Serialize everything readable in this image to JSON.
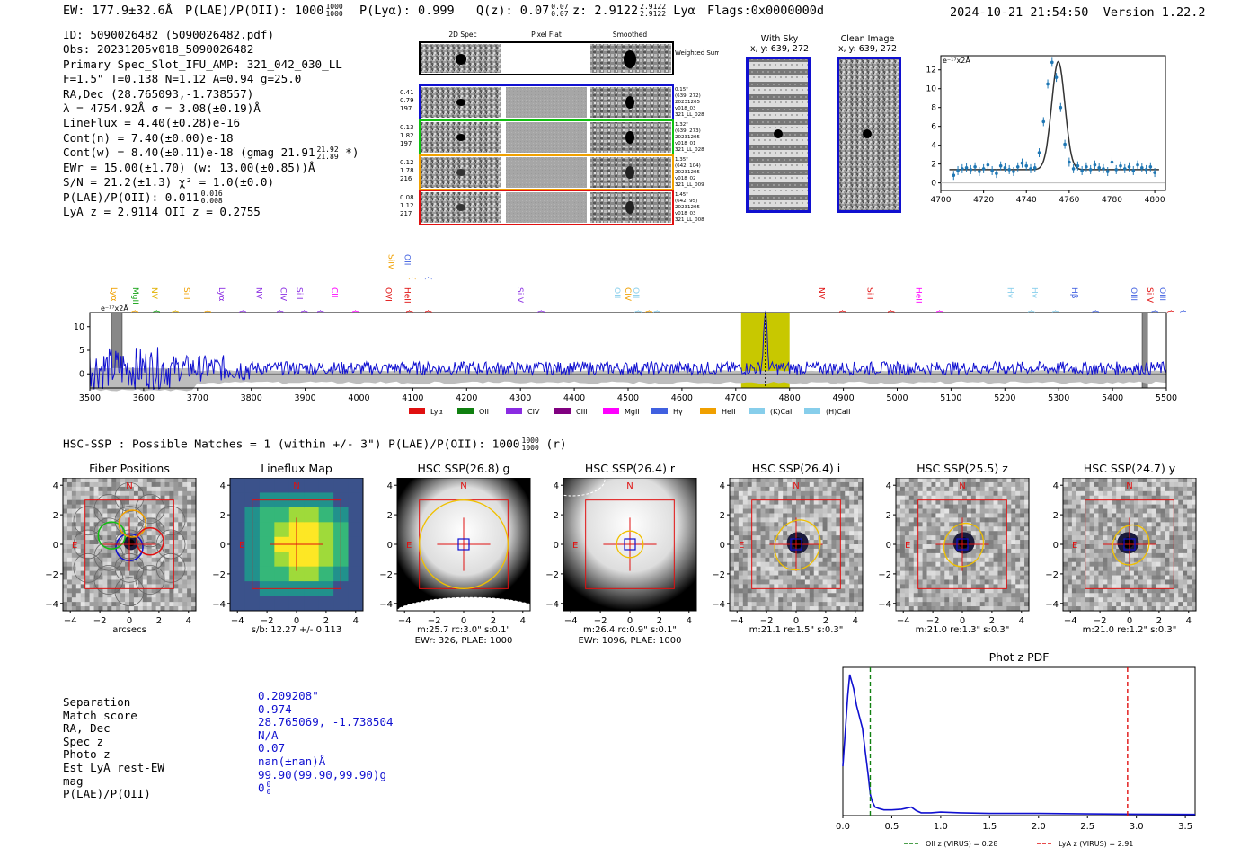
{
  "header": {
    "ew": "EW: 177.9±32.6Å",
    "plae_label": "P(LAE)/P(OII): 1000",
    "plae_hi": "1000",
    "plae_lo": "1000",
    "plya": "P(Lyα): 0.999",
    "qz_label": "Q(z): 0.07",
    "qz_hi": "0.07",
    "qz_lo": "0.07",
    "z_label": "z: 2.9122",
    "z_hi": "2.9122",
    "z_lo": "2.9122",
    "z_line": "Lyα",
    "flags": "Flags:0x0000000d",
    "timestamp": "2024-10-21 21:54:50",
    "version": "Version 1.22.2"
  },
  "info": {
    "l1": "ID: 5090026482 (5090026482.pdf)",
    "l2": "Obs: 20231205v018_5090026482",
    "l3": "Primary Spec_Slot_IFU_AMP: 321_042_030_LL",
    "l4": "F=1.5\"  T=0.138  N=1.12  A=0.94  g=25.0",
    "l5": "RA,Dec (28.765093,-1.738557)",
    "l6": "λ = 4754.92Å  σ = 3.08(±0.19)Å",
    "l7": "LineFlux = 4.40(±0.28)e-16",
    "l8": "Cont(n) = 7.40(±0.00)e-18",
    "l9": "Cont(w) = 8.40(±0.11)e-18 (gmag 21.91",
    "l9_hi": "21.92",
    "l9_lo": "21.89",
    "l9_end": "*)",
    "l10": "EWr = 15.00(±1.70)  (w: 13.00(±0.85))Å",
    "l11": "S/N = 21.2(±1.3)  χ² = 1.0(±0.0)",
    "l12": "P(LAE)/P(OII): 0.011",
    "l12_hi": "0.016",
    "l12_lo": "0.008",
    "l13": "LyA z = 2.9114   OII z = 0.2755"
  },
  "spec2d": {
    "col1": "2D Spec",
    "col2": "Pixel Flat",
    "col3": "Smoothed",
    "weighted": "Weighted Sum",
    "rows": [
      {
        "left": [
          "0.41",
          "0.79",
          "197"
        ],
        "right": [
          "0.15\"",
          "(639, 272)",
          "20231205",
          "v018_03",
          "321_LL_028"
        ],
        "color": "#1010d0"
      },
      {
        "left": [
          "0.13",
          "1.82",
          "197"
        ],
        "right": [
          "1.32\"",
          "(639, 273)",
          "20231205",
          "v018_01",
          "321_LL_028"
        ],
        "color": "#10c010"
      },
      {
        "left": [
          "0.12",
          "1.78",
          "216"
        ],
        "right": [
          "1.35\"",
          "(642, 104)",
          "20231205",
          "v018_02",
          "321_LL_009"
        ],
        "color": "#f0a000"
      },
      {
        "left": [
          "0.08",
          "1.12",
          "217"
        ],
        "right": [
          "1.45\"",
          "(642, 95)",
          "20231205",
          "v018_03",
          "321_LL_008"
        ],
        "color": "#e01010"
      }
    ]
  },
  "cutouts": {
    "sky_title": "With Sky",
    "sky_xy": "x, y: 639, 272",
    "clean_title": "Clean Image",
    "clean_xy": "x, y: 639, 272"
  },
  "line_fit": {
    "ylabel": "e⁻¹⁷x2Å",
    "xticks": [
      "4700",
      "4720",
      "4740",
      "4760",
      "4780",
      "4800"
    ],
    "yticks": [
      "0",
      "2",
      "4",
      "6",
      "8",
      "10",
      "12"
    ],
    "x": [
      4706,
      4708,
      4710,
      4712,
      4714,
      4716,
      4718,
      4720,
      4722,
      4724,
      4726,
      4728,
      4730,
      4732,
      4734,
      4736,
      4738,
      4740,
      4742,
      4744,
      4746,
      4748,
      4750,
      4752,
      4754,
      4756,
      4758,
      4760,
      4762,
      4764,
      4766,
      4768,
      4770,
      4772,
      4774,
      4776,
      4778,
      4780,
      4782,
      4784,
      4786,
      4788,
      4790,
      4792,
      4794,
      4796,
      4798,
      4800
    ],
    "y": [
      0.8,
      1.3,
      1.5,
      1.6,
      1.4,
      1.7,
      1.2,
      1.5,
      1.9,
      1.3,
      1.0,
      1.8,
      1.6,
      1.4,
      1.2,
      1.7,
      2.1,
      1.8,
      1.5,
      1.6,
      3.2,
      6.5,
      10.5,
      12.8,
      11.2,
      8.0,
      4.1,
      2.2,
      1.5,
      1.8,
      1.3,
      1.7,
      1.4,
      1.9,
      1.6,
      1.5,
      1.2,
      2.2,
      1.4,
      1.8,
      1.5,
      1.7,
      1.3,
      1.9,
      1.6,
      1.4,
      1.7,
      1.1
    ],
    "fit_center": 4754.9,
    "fit_sigma": 3.08,
    "fit_amp": 11.5,
    "fit_cont": 1.4,
    "xlim": [
      4700,
      4805
    ],
    "ylim": [
      -0.8,
      13.5
    ]
  },
  "spectrum": {
    "ylabel": "e⁻¹⁷x2Å",
    "xticks": [
      "3500",
      "3600",
      "3700",
      "3800",
      "3900",
      "4000",
      "4100",
      "4200",
      "4300",
      "4400",
      "4500",
      "4600",
      "4700",
      "4800",
      "4900",
      "5000",
      "5100",
      "5200",
      "5300",
      "5400",
      "5500"
    ],
    "yticks": [
      "0",
      "5",
      "10"
    ],
    "xlim": [
      3500,
      5500
    ],
    "ylim": [
      -3,
      13
    ],
    "line_markers": [
      {
        "name": "Lyα",
        "x": 3540,
        "color": "#f0a000"
      },
      {
        "name": "MgII",
        "x": 3580,
        "color": "#10a010"
      },
      {
        "name": "NV",
        "x": 3615,
        "color": "#e0b000"
      },
      {
        "name": "SiII",
        "x": 3675,
        "color": "#f0a000"
      },
      {
        "name": "Lyα",
        "x": 3740,
        "color": "#8a2be2"
      },
      {
        "name": "NV",
        "x": 3810,
        "color": "#8a2be2"
      },
      {
        "name": "CIV",
        "x": 3855,
        "color": "#8a2be2"
      },
      {
        "name": "SiII",
        "x": 3885,
        "color": "#8a2be2"
      },
      {
        "name": "CII",
        "x": 3950,
        "color": "#ff00ff"
      },
      {
        "name": "OVI",
        "x": 4050,
        "color": "#e01010"
      },
      {
        "name": "HeII",
        "x": 4085,
        "color": "#e01010"
      },
      {
        "name": "SiIV",
        "x": 4055,
        "color": "#f0a000",
        "upper": true
      },
      {
        "name": "OII",
        "x": 4085,
        "color": "#4060e0",
        "upper": true
      },
      {
        "name": "SiIV",
        "x": 4295,
        "color": "#8a2be2"
      },
      {
        "name": "OII",
        "x": 4475,
        "color": "#87ceeb"
      },
      {
        "name": "CIV",
        "x": 4495,
        "color": "#f0a000"
      },
      {
        "name": "OII",
        "x": 4510,
        "color": "#87ceeb"
      },
      {
        "name": "NV",
        "x": 4855,
        "color": "#e01010"
      },
      {
        "name": "SiII",
        "x": 4945,
        "color": "#e01010"
      },
      {
        "name": "HeII",
        "x": 5035,
        "color": "#ff00ff"
      },
      {
        "name": "Hγ",
        "x": 5205,
        "color": "#87ceeb"
      },
      {
        "name": "Hγ",
        "x": 5250,
        "color": "#87ceeb"
      },
      {
        "name": "Hβ",
        "x": 5325,
        "color": "#4060e0"
      },
      {
        "name": "OIII",
        "x": 5435,
        "color": "#4060e0"
      },
      {
        "name": "SiIV",
        "x": 5465,
        "color": "#e01010"
      },
      {
        "name": "OIII",
        "x": 5488,
        "color": "#4060e0"
      }
    ],
    "highlight": [
      4710,
      4800
    ],
    "peak": 4755,
    "masks": [
      [
        3540,
        3560
      ],
      [
        5455,
        5465
      ]
    ],
    "legend": [
      {
        "name": "Lyα",
        "color": "#e01010"
      },
      {
        "name": "OII",
        "color": "#108010"
      },
      {
        "name": "CIV",
        "color": "#8a2be2"
      },
      {
        "name": "CIII",
        "color": "#800080"
      },
      {
        "name": "MgII",
        "color": "#ff00ff"
      },
      {
        "name": "Hγ",
        "color": "#4060e0"
      },
      {
        "name": "HeII",
        "color": "#f0a000"
      },
      {
        "name": "(K)CaII",
        "color": "#87ceeb"
      },
      {
        "name": "(H)CaII",
        "color": "#87ceeb"
      }
    ]
  },
  "hsc": {
    "title": "HSC-SSP : Possible Matches = 1 (within +/- 3\")  P(LAE)/P(OII): 1000",
    "title_hi": "1000",
    "title_lo": "1000",
    "title_end": "(r)",
    "panels": [
      {
        "title": "Fiber Positions",
        "cap1": "arcsecs",
        "cap2": ""
      },
      {
        "title": "Lineflux Map",
        "cap1": "s/b: 12.27 +/- 0.113",
        "cap2": ""
      },
      {
        "title": "HSC SSP(26.8) g",
        "cap1": "m:25.7 rc:3.0\"  s:0.1\"",
        "cap2": "EWr: 326, PLAE: 1000"
      },
      {
        "title": "HSC SSP(26.4) r",
        "cap1": "m:26.4 rc:0.9\"  s:0.1\"",
        "cap2": "EWr: 1096, PLAE: 1000"
      },
      {
        "title": "HSC SSP(26.4) i",
        "cap1": "m:21.1  re:1.5\"  s:0.3\"",
        "cap2": ""
      },
      {
        "title": "HSC SSP(25.5) z",
        "cap1": "m:21.0  re:1.3\"  s:0.3\"",
        "cap2": ""
      },
      {
        "title": "HSC SSP(24.7) y",
        "cap1": "m:21.0  re:1.2\"  s:0.3\"",
        "cap2": ""
      }
    ],
    "axis_ticks": [
      "−4",
      "−2",
      "0",
      "2",
      "4"
    ],
    "n_label": "N",
    "e_label": "E"
  },
  "match": {
    "labels": [
      "Separation",
      "Match score",
      "RA, Dec",
      "Spec z",
      "Photo z",
      "Est LyA rest-EW",
      "mag",
      "P(LAE)/P(OII)"
    ],
    "values": [
      "0.209208\"",
      "0.974",
      "28.765069, -1.738504",
      "N/A",
      "0.07",
      "nan(±nan)Å",
      "99.90(99.90,99.90)g",
      "0"
    ],
    "plae_hi": "0",
    "plae_lo": "0"
  },
  "chart_data": [
    {
      "type": "line",
      "title": "Phot z PDF",
      "xlabel": "",
      "ylabel": "",
      "xlim": [
        0,
        3.6
      ],
      "xticks": [
        "0.0",
        "0.5",
        "1.0",
        "1.5",
        "2.0",
        "2.5",
        "3.0",
        "3.5"
      ],
      "x": [
        0.0,
        0.02,
        0.05,
        0.07,
        0.09,
        0.11,
        0.14,
        0.17,
        0.2,
        0.23,
        0.26,
        0.28,
        0.3,
        0.33,
        0.37,
        0.42,
        0.5,
        0.6,
        0.7,
        0.75,
        0.8,
        0.9,
        1.0,
        1.2,
        1.5,
        2.0,
        2.5,
        3.0,
        3.6
      ],
      "y": [
        0.35,
        0.55,
        0.85,
        1.0,
        0.95,
        0.9,
        0.78,
        0.7,
        0.62,
        0.45,
        0.28,
        0.15,
        0.1,
        0.06,
        0.05,
        0.04,
        0.04,
        0.045,
        0.06,
        0.035,
        0.02,
        0.02,
        0.025,
        0.02,
        0.015,
        0.015,
        0.012,
        0.01,
        0.008
      ],
      "vlines": [
        {
          "name": "OII z (VIRUS) = 0.28",
          "x": 0.28,
          "color": "#108010"
        },
        {
          "name": "LyA z (VIRUS) = 2.91",
          "x": 2.91,
          "color": "#e01010"
        }
      ]
    }
  ]
}
